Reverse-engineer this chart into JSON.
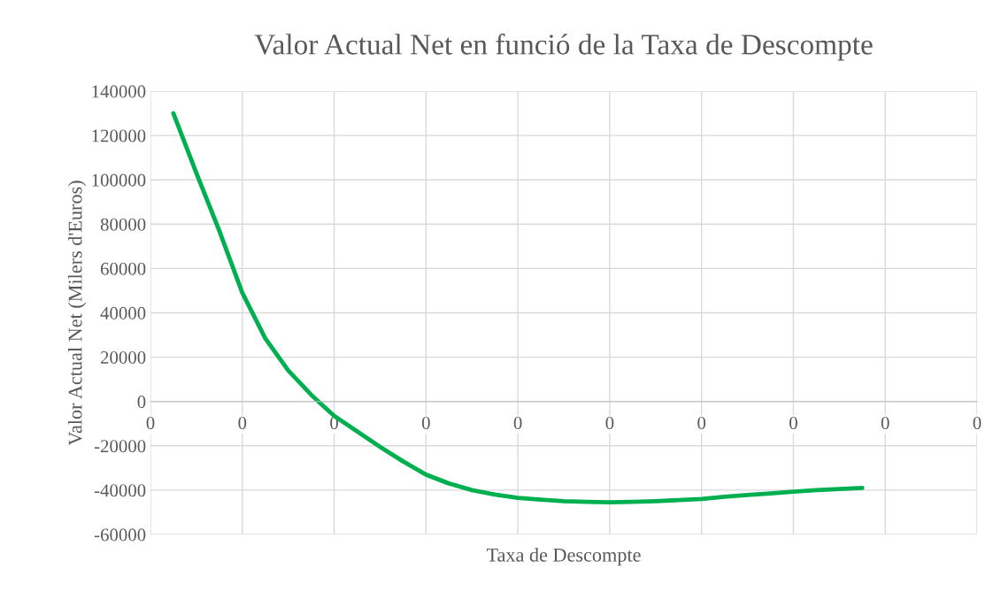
{
  "chart_data": {
    "type": "line",
    "title": "Valor Actual Net en funció de la Taxa de Descompte",
    "xlabel": "Taxa de Descompte",
    "ylabel": "Valor Actual Net (Milers d'Euros)",
    "categories": [
      "0",
      null,
      null,
      null,
      "0",
      null,
      null,
      null,
      "0",
      null,
      null,
      null,
      "0",
      null,
      null,
      null,
      "0",
      null,
      null,
      null,
      "0",
      null,
      null,
      null,
      "0",
      null,
      null,
      null,
      "0",
      null,
      null,
      null,
      "0",
      null,
      null,
      null,
      "0"
    ],
    "series": [
      {
        "color": "#00b050",
        "values": [
          null,
          130000,
          103000,
          77000,
          49000,
          28500,
          14000,
          3000,
          -6500,
          -13500,
          -20500,
          -27000,
          -33000,
          -37000,
          -40000,
          -42000,
          -43500,
          -44300,
          -45000,
          -45300,
          -45500,
          -45300,
          -45000,
          -44500,
          -44000,
          -43000,
          -42200,
          -41500,
          -40700,
          -40000,
          -39500,
          -39000,
          null,
          null,
          null,
          null,
          null
        ]
      }
    ],
    "ylim": [
      -60000,
      140000
    ],
    "yticks": [
      -60000,
      -40000,
      -20000,
      0,
      20000,
      40000,
      60000,
      80000,
      100000,
      120000,
      140000
    ],
    "grid": true,
    "marker": "none",
    "line_style": "solid"
  }
}
